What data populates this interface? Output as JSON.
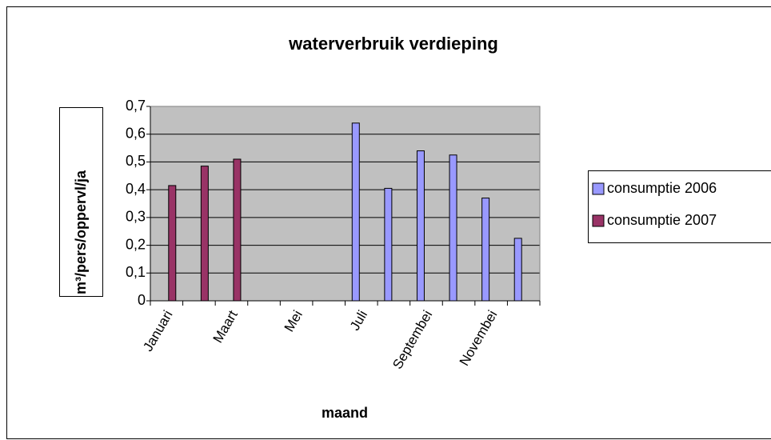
{
  "chart_data": {
    "type": "bar",
    "title": "waterverbruik verdieping",
    "x_label": "maand",
    "y_label": "m³/pers/oppervl/ja",
    "categories": [
      "Januari",
      null,
      "Maart",
      null,
      "Mei",
      null,
      "Juli",
      null,
      "Septembei",
      null,
      "Novembei",
      null
    ],
    "series": [
      {
        "name": "consumptie 2006",
        "color": "#9999ff",
        "values": [
          null,
          null,
          null,
          null,
          null,
          null,
          0.64,
          0.405,
          0.54,
          0.525,
          0.37,
          0.225
        ]
      },
      {
        "name": "consumptie 2007",
        "color": "#993366",
        "values": [
          0.415,
          0.485,
          0.51,
          null,
          null,
          null,
          null,
          null,
          null,
          null,
          null,
          null
        ]
      }
    ],
    "ylim": [
      0,
      0.7
    ],
    "yticks": [
      0,
      {
        "value": 0.1,
        "label": "0,1"
      },
      {
        "value": 0.2,
        "label": "0,2"
      },
      {
        "value": 0.3,
        "label": "0,3"
      },
      {
        "value": 0.4,
        "label": "0,4"
      },
      {
        "value": 0.5,
        "label": "0,5"
      },
      {
        "value": 0.6,
        "label": "0,6"
      },
      {
        "value": 0.7,
        "label": "0,7"
      }
    ],
    "grid": true,
    "plot_background": "#c0c0c0",
    "legend": "right"
  }
}
